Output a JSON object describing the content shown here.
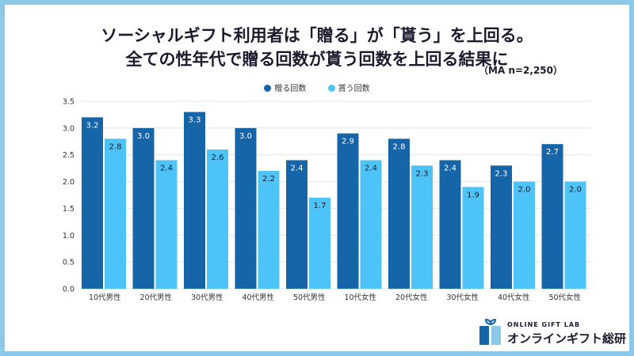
{
  "chart_data": {
    "type": "bar",
    "title": "ソーシャルギフト利用者は「贈る」が「貰う」を上回る。",
    "subtitle": "全ての性年代で贈る回数が貰う回数を上回る結果に",
    "note": "（MA n=2,250）",
    "categories": [
      "10代男性",
      "20代男性",
      "30代男性",
      "40代男性",
      "50代男性",
      "10代女性",
      "20代女性",
      "30代女性",
      "40代女性",
      "50代女性"
    ],
    "series": [
      {
        "name": "贈る回数",
        "color": "#1565a8",
        "values": [
          3.2,
          3.0,
          3.3,
          3.0,
          2.4,
          2.9,
          2.8,
          2.4,
          2.3,
          2.7
        ]
      },
      {
        "name": "貰う回数",
        "color": "#4ec3f7",
        "values": [
          2.8,
          2.4,
          2.6,
          2.2,
          1.7,
          2.4,
          2.3,
          1.9,
          2.0,
          2.0
        ]
      }
    ],
    "yticks": [
      "0.0",
      "0.5",
      "1.0",
      "1.5",
      "2.0",
      "2.5",
      "3.0",
      "3.5"
    ],
    "ylim": [
      0,
      3.5
    ],
    "grid": true,
    "legend": "top-center"
  },
  "logo": {
    "en": "ONLINE GIFT LAB",
    "jp": "オンラインギフト総研"
  }
}
